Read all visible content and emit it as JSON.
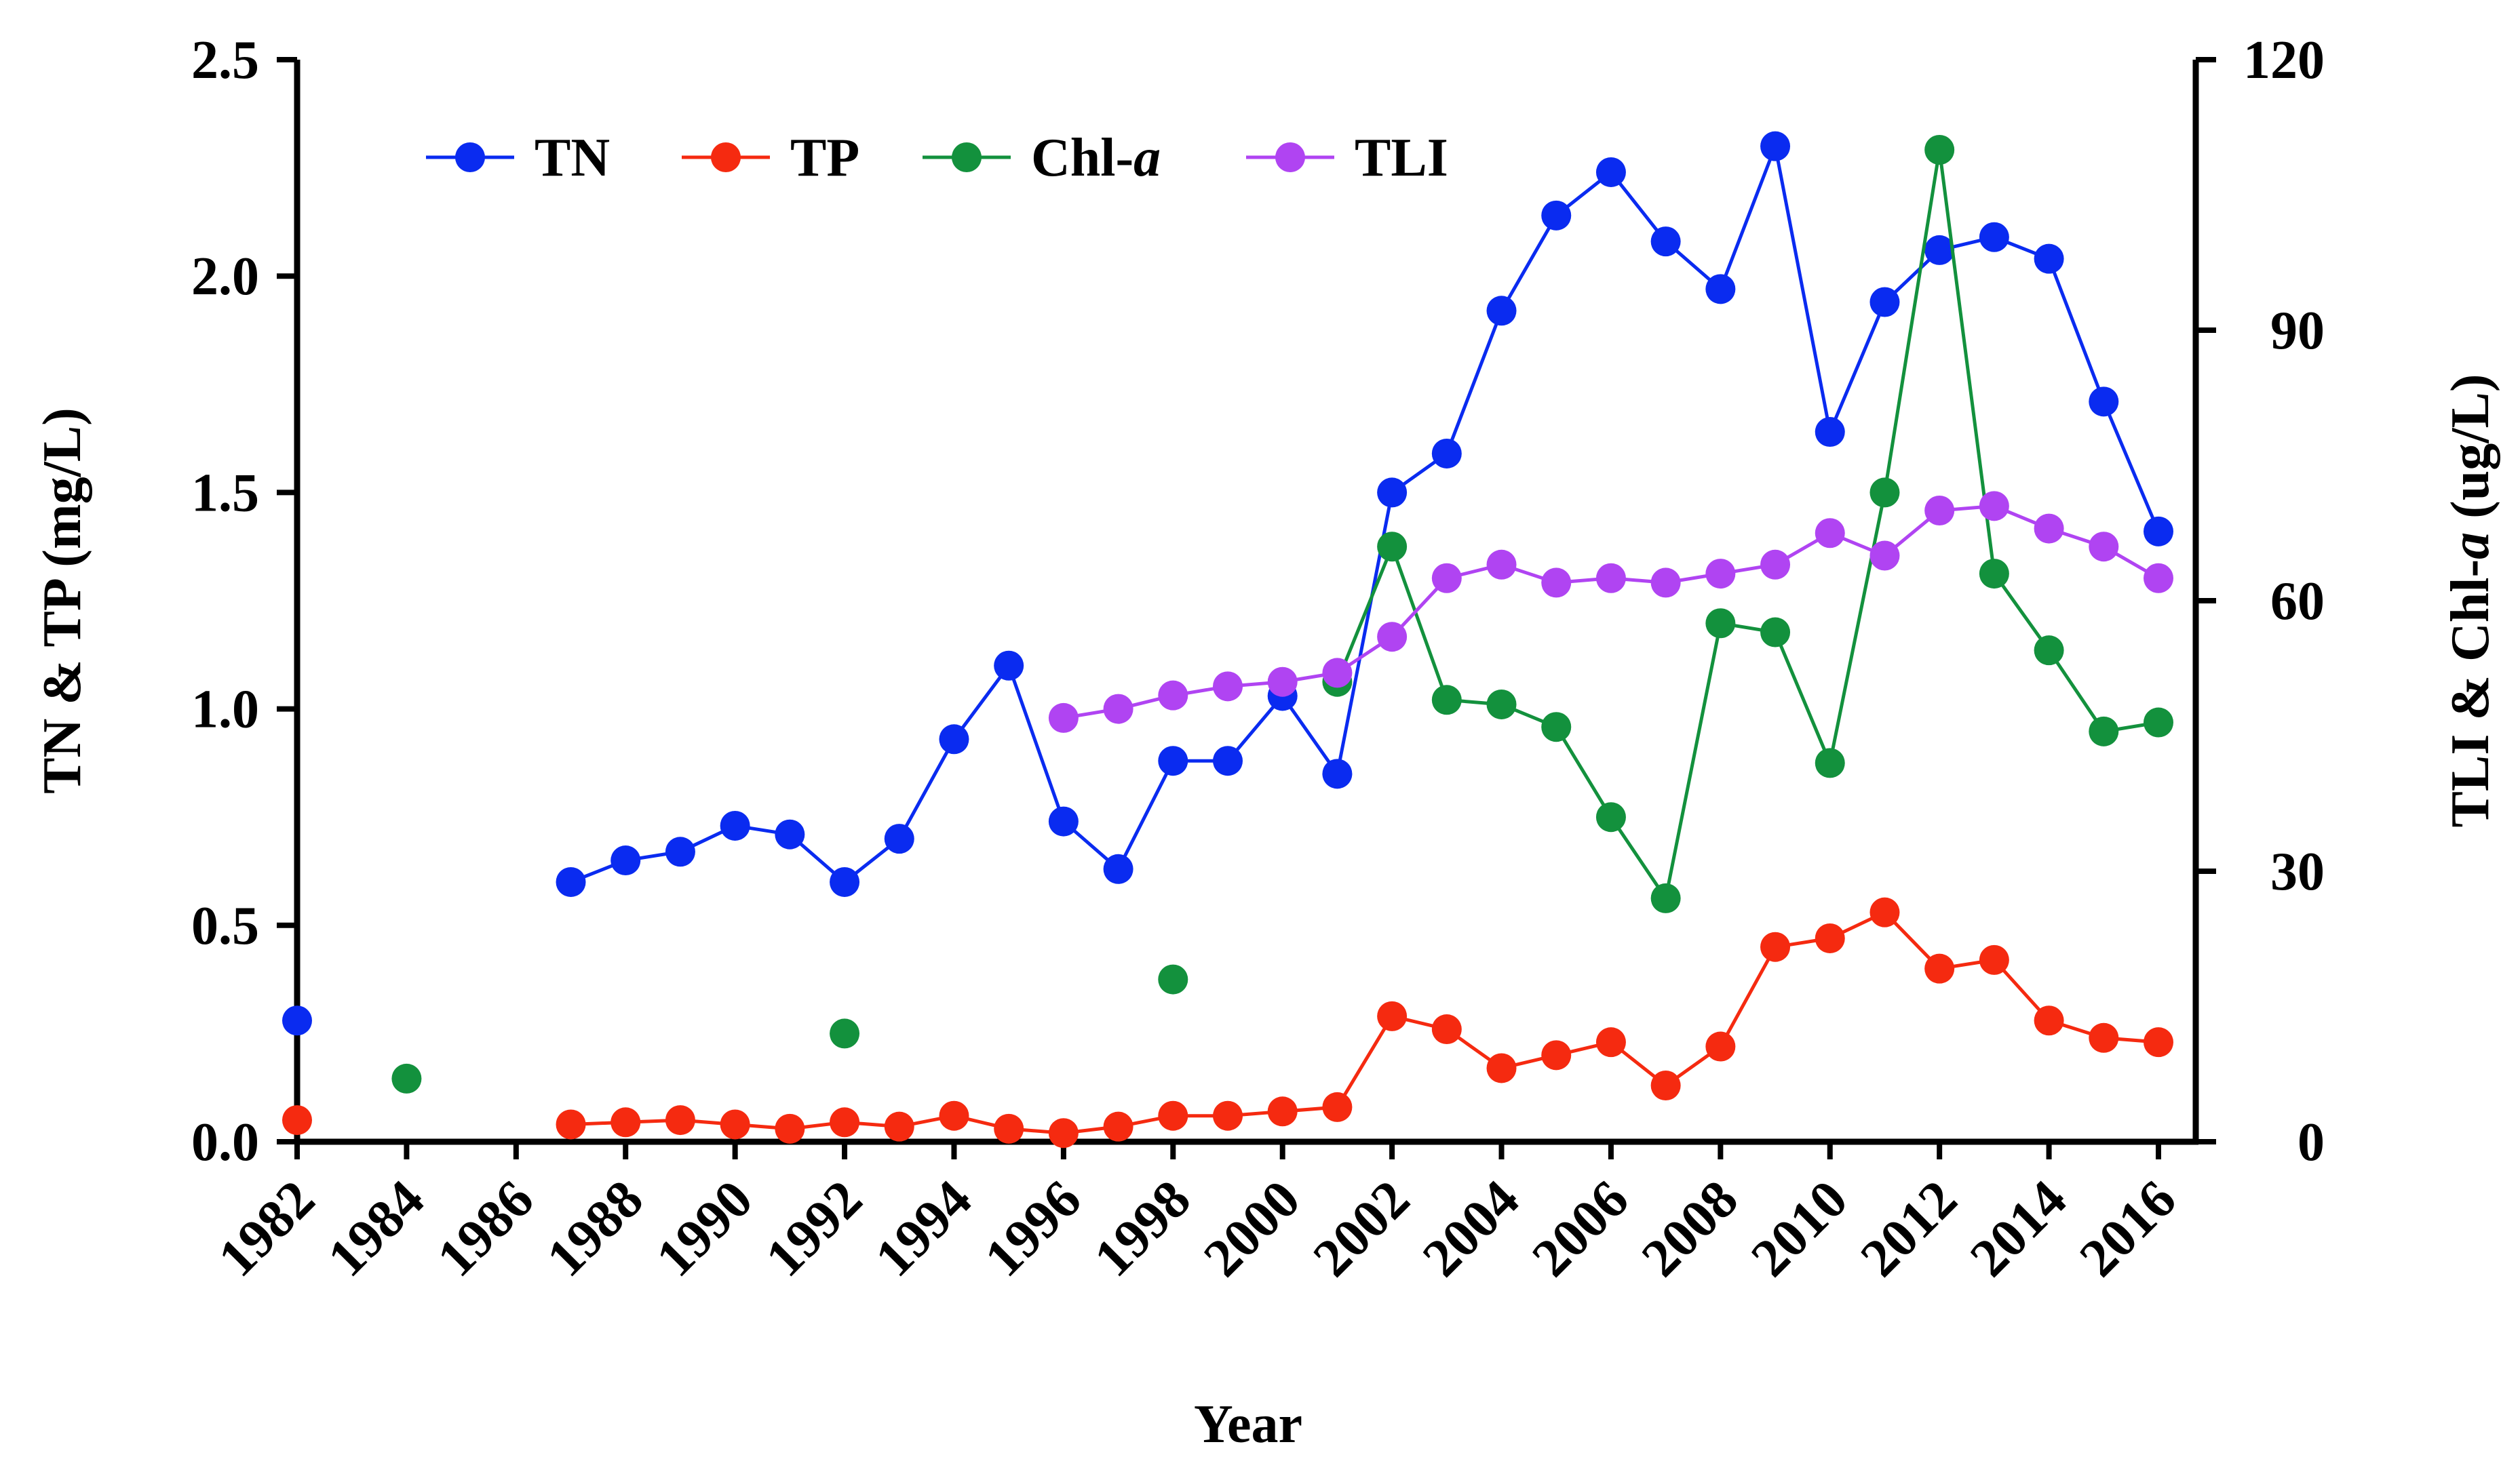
{
  "chart_data": {
    "type": "line",
    "title": "",
    "xlabel": "Year",
    "ylabel_left": "TN & TP (mg/L)",
    "ylabel_right": "TLI & Chl-a (ug/L)",
    "ylabel_right_parts": {
      "pre": "TLI & Chl-",
      "italic": "a",
      "post": " (ug/L)"
    },
    "xlim": [
      1982,
      2016
    ],
    "xticks": [
      "1982",
      "1984",
      "1986",
      "1988",
      "1990",
      "1992",
      "1994",
      "1996",
      "1998",
      "2000",
      "2002",
      "2004",
      "2006",
      "2008",
      "2010",
      "2012",
      "2014",
      "2016"
    ],
    "ylim_left": [
      0,
      2.5
    ],
    "yticks_left": [
      "0.0",
      "0.5",
      "1.0",
      "1.5",
      "2.0",
      "2.5"
    ],
    "ylim_right": [
      0,
      120
    ],
    "yticks_right": [
      "0",
      "30",
      "60",
      "90",
      "120"
    ],
    "legend_position": "top-left",
    "series": [
      {
        "name": "TN",
        "axis": "left",
        "color": "#0a2bf0",
        "x": [
          1982,
          1987,
          1988,
          1989,
          1990,
          1991,
          1992,
          1993,
          1994,
          1995,
          1996,
          1997,
          1998,
          1999,
          2000,
          2001,
          2002,
          2003,
          2004,
          2005,
          2006,
          2007,
          2008,
          2009,
          2010,
          2011,
          2012,
          2013,
          2014,
          2015,
          2016
        ],
        "y": [
          0.28,
          0.6,
          0.65,
          0.67,
          0.73,
          0.71,
          0.6,
          0.7,
          0.93,
          1.1,
          0.74,
          0.63,
          0.88,
          0.88,
          1.03,
          0.85,
          1.5,
          1.59,
          1.92,
          2.14,
          2.24,
          2.08,
          1.97,
          2.3,
          1.64,
          1.94,
          2.06,
          2.09,
          2.04,
          1.71,
          1.41
        ],
        "segments": [
          [
            1987,
            2016
          ]
        ]
      },
      {
        "name": "TP",
        "axis": "left",
        "color": "#f52a10",
        "x": [
          1982,
          1987,
          1988,
          1989,
          1990,
          1991,
          1992,
          1993,
          1994,
          1995,
          1996,
          1997,
          1998,
          1999,
          2000,
          2001,
          2002,
          2003,
          2004,
          2005,
          2006,
          2007,
          2008,
          2009,
          2010,
          2011,
          2012,
          2013,
          2014,
          2015,
          2016
        ],
        "y": [
          0.05,
          0.04,
          0.045,
          0.05,
          0.04,
          0.03,
          0.045,
          0.035,
          0.06,
          0.03,
          0.02,
          0.035,
          0.06,
          0.06,
          0.07,
          0.08,
          0.29,
          0.26,
          0.17,
          0.2,
          0.23,
          0.13,
          0.22,
          0.45,
          0.47,
          0.53,
          0.4,
          0.42,
          0.28,
          0.24,
          0.23
        ],
        "segments": [
          [
            1987,
            2016
          ]
        ]
      },
      {
        "name": "Chl-a",
        "name_parts": {
          "pre": "Chl-",
          "italic": "a"
        },
        "axis": "right",
        "color": "#13913d",
        "x": [
          1984,
          1992,
          1998,
          2001,
          2002,
          2003,
          2004,
          2005,
          2006,
          2007,
          2008,
          2009,
          2010,
          2011,
          2012,
          2013,
          2014,
          2015,
          2016
        ],
        "y": [
          7,
          12,
          18,
          51,
          66,
          49,
          48.5,
          46,
          36,
          27,
          57.5,
          56.5,
          42,
          72,
          110,
          63,
          54.5,
          45.5,
          46.5
        ],
        "segments": [
          [
            2001,
            2016
          ]
        ]
      },
      {
        "name": "TLI",
        "axis": "right",
        "color": "#b044f2",
        "x": [
          1996,
          1997,
          1998,
          1999,
          2000,
          2001,
          2002,
          2003,
          2004,
          2005,
          2006,
          2007,
          2008,
          2009,
          2010,
          2011,
          2012,
          2013,
          2014,
          2015,
          2016
        ],
        "y": [
          47,
          48,
          49.5,
          50.5,
          51,
          52,
          56,
          62.5,
          64,
          62,
          62.5,
          62,
          63,
          64,
          67.5,
          65,
          70,
          70.5,
          68,
          66,
          62.5
        ],
        "segments": [
          [
            1996,
            2016
          ]
        ]
      }
    ]
  }
}
